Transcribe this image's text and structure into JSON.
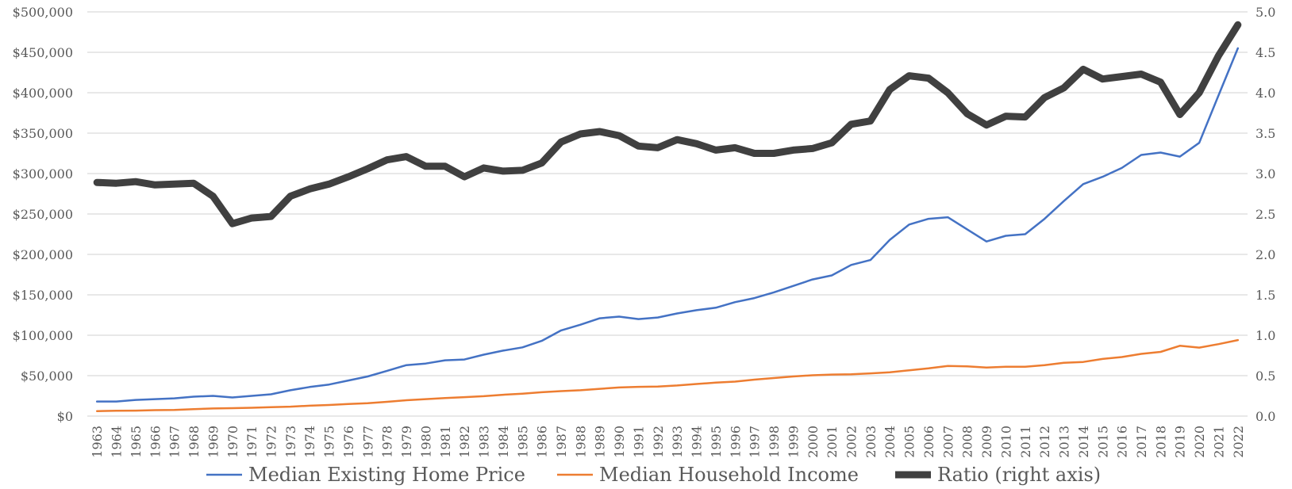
{
  "chart_data": {
    "type": "line",
    "x": [
      1963,
      1964,
      1965,
      1966,
      1967,
      1968,
      1969,
      1970,
      1971,
      1972,
      1973,
      1974,
      1975,
      1976,
      1977,
      1978,
      1979,
      1980,
      1981,
      1982,
      1983,
      1984,
      1985,
      1986,
      1987,
      1988,
      1989,
      1990,
      1991,
      1992,
      1993,
      1994,
      1995,
      1996,
      1997,
      1998,
      1999,
      2000,
      2001,
      2002,
      2003,
      2004,
      2005,
      2006,
      2007,
      2008,
      2009,
      2010,
      2011,
      2012,
      2013,
      2014,
      2015,
      2016,
      2017,
      2018,
      2019,
      2020,
      2021,
      2022
    ],
    "x_tick_labels": [
      "1963",
      "1964",
      "1965",
      "1966",
      "1967",
      "1968",
      "1969",
      "1970",
      "1971",
      "1972",
      "1973",
      "1974",
      "1975",
      "1976",
      "1977",
      "1978",
      "1979",
      "1980",
      "1981",
      "1982",
      "1983",
      "1984",
      "1985",
      "1986",
      "1987",
      "1988",
      "1989",
      "1990",
      "1991",
      "1992",
      "1993",
      "1994",
      "1995",
      "1996",
      "1997",
      "1998",
      "1999",
      "2000",
      "2001",
      "2002",
      "2003",
      "2004",
      "2005",
      "2006",
      "2007",
      "2008",
      "2009",
      "2010",
      "2011",
      "2012",
      "2013",
      "2014",
      "2015",
      "2016",
      "2017",
      "2018",
      "2019",
      "2020",
      "2021",
      "2022"
    ],
    "y_left": {
      "range": [
        0,
        500000
      ],
      "tick_labels": [
        "$0",
        "$50,000",
        "$100,000",
        "$150,000",
        "$200,000",
        "$250,000",
        "$300,000",
        "$350,000",
        "$400,000",
        "$450,000",
        "$500,000"
      ]
    },
    "y_right": {
      "range": [
        0,
        5.0
      ],
      "tick_labels": [
        "0.0",
        "0.5",
        "1.0",
        "1.5",
        "2.0",
        "2.5",
        "3.0",
        "3.5",
        "4.0",
        "4.5",
        "5.0"
      ]
    },
    "grid": true,
    "legend_position": "bottom",
    "series": [
      {
        "name": "Median Existing Home Price",
        "axis": "left",
        "color": "#4472c4",
        "values": [
          18000,
          18000,
          20000,
          21000,
          22000,
          24000,
          25000,
          23000,
          25000,
          27000,
          32000,
          36000,
          39000,
          44000,
          49000,
          56000,
          63000,
          65000,
          69000,
          70000,
          76000,
          81000,
          85000,
          93000,
          106000,
          113000,
          121000,
          123000,
          120000,
          122000,
          127000,
          131000,
          134000,
          141000,
          146000,
          153000,
          161000,
          169000,
          174000,
          187000,
          193000,
          218000,
          237000,
          244000,
          246000,
          231000,
          216000,
          223000,
          225000,
          244000,
          266000,
          287000,
          296000,
          307000,
          323000,
          326000,
          321000,
          338000,
          397000,
          455000
        ]
      },
      {
        "name": "Median Household Income",
        "axis": "left",
        "color": "#ed7d31",
        "values": [
          6200,
          6600,
          6800,
          7400,
          7600,
          8500,
          9400,
          9800,
          10300,
          11100,
          11700,
          12800,
          13700,
          14900,
          16000,
          17600,
          19600,
          21000,
          22300,
          23400,
          24600,
          26400,
          27700,
          29500,
          30900,
          32000,
          33700,
          35400,
          36200,
          36600,
          37800,
          39700,
          41400,
          42600,
          45100,
          47100,
          49000,
          50500,
          51400,
          51800,
          52800,
          54200,
          56700,
          59000,
          62100,
          61500,
          60000,
          61000,
          61000,
          63000,
          66000,
          67000,
          70700,
          73000,
          77000,
          79400,
          87000,
          84700,
          89000,
          94000
        ]
      },
      {
        "name": "Ratio (right axis)",
        "axis": "right",
        "color": "#404040",
        "values": [
          2.89,
          2.88,
          2.9,
          2.86,
          2.87,
          2.88,
          2.72,
          2.38,
          2.45,
          2.47,
          2.72,
          2.81,
          2.87,
          2.96,
          3.06,
          3.17,
          3.21,
          3.09,
          3.09,
          2.96,
          3.07,
          3.03,
          3.04,
          3.13,
          3.39,
          3.49,
          3.52,
          3.47,
          3.34,
          3.32,
          3.42,
          3.37,
          3.29,
          3.32,
          3.25,
          3.25,
          3.29,
          3.31,
          3.38,
          3.61,
          3.65,
          4.04,
          4.21,
          4.18,
          4.0,
          3.74,
          3.6,
          3.71,
          3.7,
          3.94,
          4.06,
          4.29,
          4.17,
          4.2,
          4.23,
          4.13,
          3.73,
          4.0,
          4.46,
          4.84
        ]
      }
    ]
  }
}
